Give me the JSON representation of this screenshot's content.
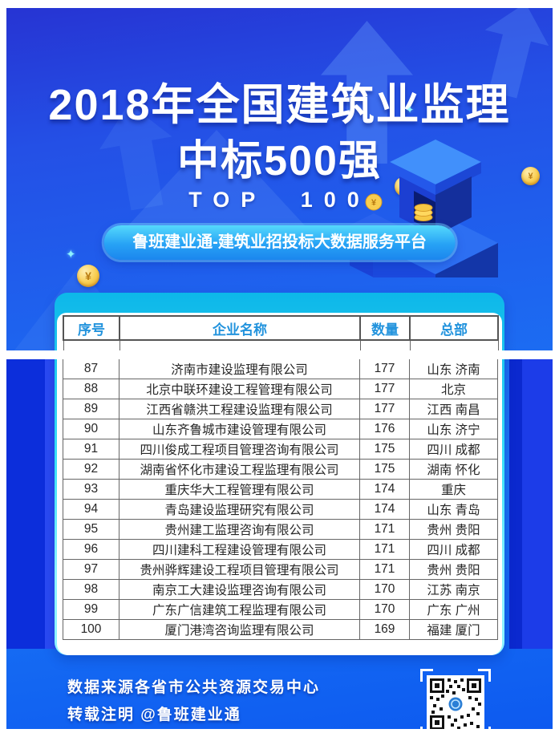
{
  "poster": {
    "title_line1": "2018年全国建筑业监理",
    "title_line2": "中标500强",
    "top_label": "TOP  100",
    "badge_label": "鲁班建业通-建筑业招投标大数据服务平台"
  },
  "table": {
    "columns": [
      "序号",
      "企业名称",
      "数量",
      "总部"
    ],
    "rows": [
      [
        "87",
        "济南市建设监理有限公司",
        "177",
        "山东 济南"
      ],
      [
        "88",
        "北京中联环建设工程管理有限公司",
        "177",
        "北京"
      ],
      [
        "89",
        "江西省赣洪工程建设监理有限公司",
        "177",
        "江西 南昌"
      ],
      [
        "90",
        "山东齐鲁城市建设管理有限公司",
        "176",
        "山东 济宁"
      ],
      [
        "91",
        "四川俊成工程项目管理咨询有限公司",
        "175",
        "四川 成都"
      ],
      [
        "92",
        "湖南省怀化市建设工程监理有限公司",
        "175",
        "湖南 怀化"
      ],
      [
        "93",
        "重庆华大工程管理有限公司",
        "174",
        "重庆"
      ],
      [
        "94",
        "青岛建设监理研究有限公司",
        "174",
        "山东 青岛"
      ],
      [
        "95",
        "贵州建工监理咨询有限公司",
        "171",
        "贵州 贵阳"
      ],
      [
        "96",
        "四川建科工程建设管理有限公司",
        "171",
        "四川 成都"
      ],
      [
        "97",
        "贵州骅辉建设工程项目管理有限公司",
        "171",
        "贵州 贵阳"
      ],
      [
        "98",
        "南京工大建设监理咨询有限公司",
        "170",
        "江苏 南京"
      ],
      [
        "99",
        "广东广信建筑工程监理有限公司",
        "170",
        "广东 广州"
      ],
      [
        "100",
        "厦门港湾咨询监理有限公司",
        "169",
        "福建 厦门"
      ]
    ]
  },
  "footer": {
    "line1": "数据来源各省市公共资源交易中心",
    "line2": "转载注明 @鲁班建业通"
  },
  "icons": {
    "coin_symbol": "¥",
    "sparkle_symbol": "✦"
  },
  "colors": {
    "poster_top_blue": "#2634d3",
    "poster_mid_blue": "#1d66f0",
    "poster_bottom_blue": "#0d5af0",
    "card_edge_cyan": "#3ce2f7",
    "table_header_text": "#2293dd",
    "pill_gradient_start": "#55d9fc",
    "pill_gradient_end": "#1b86ee",
    "coin_gold": "#f8cd4f",
    "side_strip_dark": "#0c2edb",
    "side_strip_light": "#2a4af3"
  }
}
